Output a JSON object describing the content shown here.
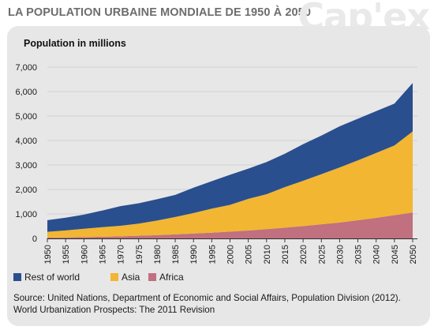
{
  "page": {
    "title": "LA POPULATION URBAINE MONDIALE DE 1950 À 2050",
    "source": "Source: United Nations, Department of Economic and Social Affairs, Population Division (2012). World Urbanization Prospects: The 2011 Revision"
  },
  "chart_data": {
    "type": "area",
    "stacked": true,
    "ylabel": "Population in millions",
    "ylim": [
      0,
      7000
    ],
    "yticks": [
      0,
      1000,
      2000,
      3000,
      4000,
      5000,
      6000,
      7000
    ],
    "ytick_labels": [
      "0",
      "1,000",
      "2,000",
      "3,000",
      "4,000",
      "5,000",
      "6,000",
      "7,000"
    ],
    "grid": true,
    "legend_position": "bottom-left",
    "x": [
      "1950",
      "1955",
      "1960",
      "1965",
      "1970",
      "1975",
      "1980",
      "1985",
      "1990",
      "1995",
      "2000",
      "2005",
      "2010",
      "2015",
      "2020",
      "2025",
      "2030",
      "2035",
      "2040",
      "2045",
      "2050"
    ],
    "series": [
      {
        "name": "Africa",
        "color": "#c0707f",
        "values": [
          33,
          41,
          53,
          68,
          86,
          108,
          135,
          166,
          199,
          233,
          277,
          323,
          378,
          440,
          505,
          575,
          650,
          740,
          840,
          950,
          1060
        ]
      },
      {
        "name": "Asia",
        "color": "#f2b632",
        "values": [
          237,
          285,
          343,
          390,
          432,
          498,
          595,
          708,
          837,
          984,
          1092,
          1292,
          1429,
          1655,
          1850,
          2050,
          2250,
          2450,
          2650,
          2850,
          3310
        ]
      },
      {
        "name": "Rest of world",
        "color": "#2a4f8e",
        "values": [
          475,
          520,
          575,
          680,
          800,
          830,
          870,
          906,
          1035,
          1123,
          1231,
          1235,
          1313,
          1365,
          1495,
          1575,
          1680,
          1700,
          1710,
          1710,
          1980
        ]
      }
    ]
  }
}
